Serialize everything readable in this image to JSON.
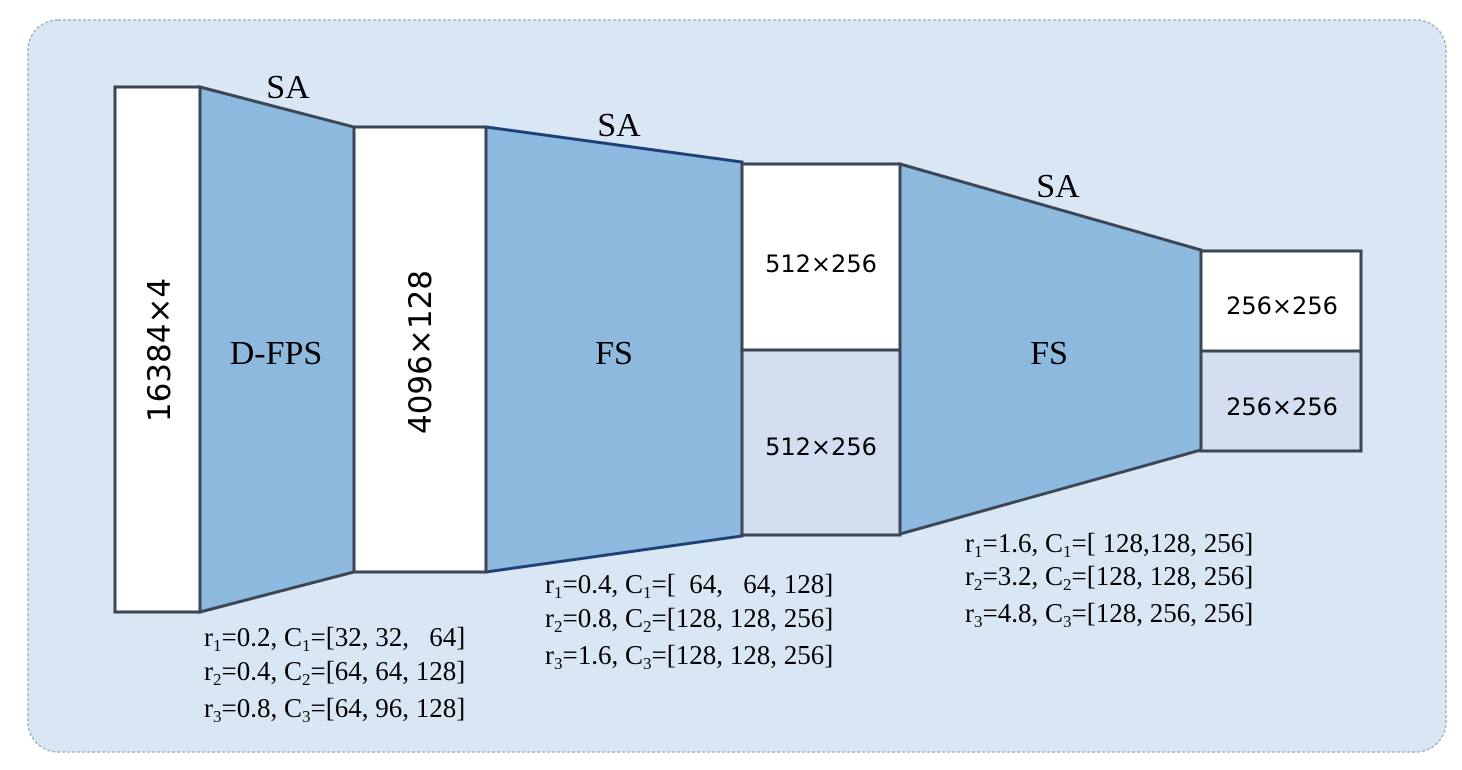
{
  "stages": [
    {
      "id": "stage-1",
      "op_label": "SA",
      "sampler_label": "D-FPS",
      "params": [
        {
          "r": "r",
          "r_sub": "1",
          "r_val": "=0.2, C",
          "c_sub": "1",
          "c_val": "=[32, 32,   64]"
        },
        {
          "r": "r",
          "r_sub": "2",
          "r_val": "=0.4, C",
          "c_sub": "2",
          "c_val": "=[64, 64, 128]"
        },
        {
          "r": "r",
          "r_sub": "3",
          "r_val": "=0.8, C",
          "c_sub": "3",
          "c_val": "=[64, 96, 128]"
        }
      ]
    },
    {
      "id": "stage-2",
      "op_label": "SA",
      "sampler_label": "FS",
      "params": [
        {
          "r": "r",
          "r_sub": "1",
          "r_val": "=0.4, C",
          "c_sub": "1",
          "c_val": "=[  64,   64, 128]"
        },
        {
          "r": "r",
          "r_sub": "2",
          "r_val": "=0.8, C",
          "c_sub": "2",
          "c_val": "=[128, 128, 256]"
        },
        {
          "r": "r",
          "r_sub": "3",
          "r_val": "=1.6, C",
          "c_sub": "3",
          "c_val": "=[128, 128, 256]"
        }
      ]
    },
    {
      "id": "stage-3",
      "op_label": "SA",
      "sampler_label": "FS",
      "params": [
        {
          "r": "r",
          "r_sub": "1",
          "r_val": "=1.6, C",
          "c_sub": "1",
          "c_val": "=[ 128,128, 256]"
        },
        {
          "r": "r",
          "r_sub": "2",
          "r_val": "=3.2, C",
          "c_sub": "2",
          "c_val": "=[128, 128, 256]"
        },
        {
          "r": "r",
          "r_sub": "3",
          "r_val": "=4.8, C",
          "c_sub": "3",
          "c_val": "=[128, 256, 256]"
        }
      ]
    }
  ],
  "tensors": {
    "input": "16384×4",
    "stage1_out": "4096×128",
    "stage2_out_top": "512×256",
    "stage2_out_bottom": "512×256",
    "stage3_out_top": "256×256",
    "stage3_out_bottom": "256×256"
  },
  "colors": {
    "panel_bg": "#d9e7f4",
    "panel_border": "#9fb3c6",
    "funnel_fill": "#8eb9de",
    "box_white": "#ffffff",
    "box_shaded": "#d3dff0",
    "stroke": "#3b4656",
    "stroke_dark_blue": "#1f3f77"
  }
}
